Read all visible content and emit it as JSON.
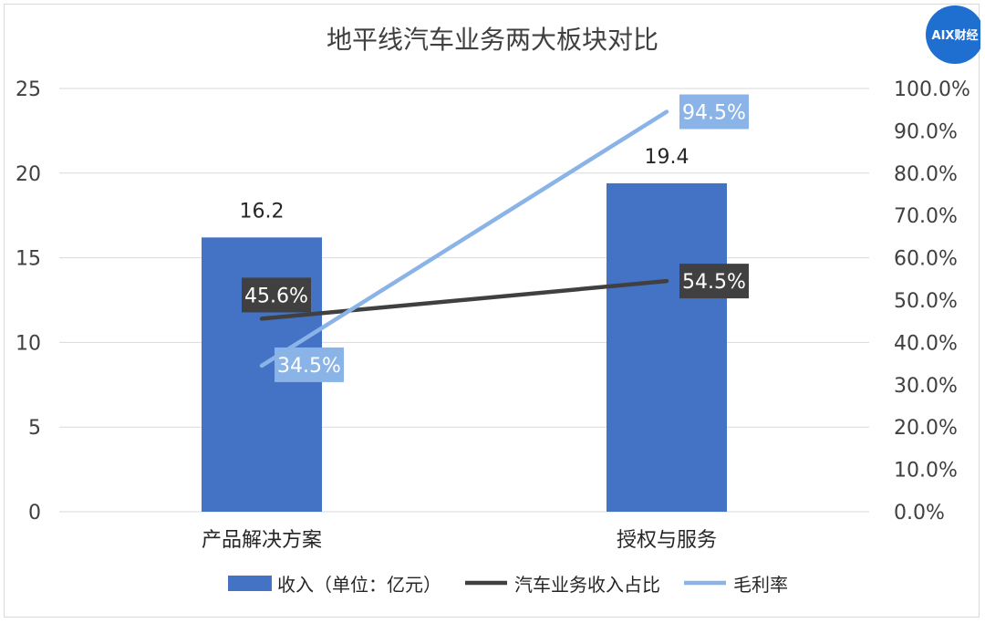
{
  "watermark": {
    "text": "AIX财经",
    "color": "#1f6fd1"
  },
  "chart_data": {
    "type": "bar",
    "title": "地平线汽车业务两大板块对比",
    "categories": [
      "产品解决方案",
      "授权与服务"
    ],
    "ylim": [
      0,
      25
    ],
    "y_ticks": [
      "0",
      "5",
      "10",
      "15",
      "20",
      "25"
    ],
    "y2lim": [
      0,
      100
    ],
    "y2_ticks": [
      "0.0%",
      "10.0%",
      "20.0%",
      "30.0%",
      "40.0%",
      "50.0%",
      "60.0%",
      "70.0%",
      "80.0%",
      "90.0%",
      "100.0%"
    ],
    "grid": true,
    "legend_position": "bottom",
    "series": [
      {
        "name": "收入（单位：亿元）",
        "type": "bar",
        "axis": "left",
        "color": "#4472c4",
        "values": [
          16.2,
          19.4
        ],
        "labels": [
          "16.2",
          "19.4"
        ]
      },
      {
        "name": "汽车业务收入占比",
        "type": "line",
        "axis": "right",
        "color": "#404040",
        "values": [
          45.6,
          54.5
        ],
        "labels": [
          "45.6%",
          "54.5%"
        ]
      },
      {
        "name": "毛利率",
        "type": "line",
        "axis": "right",
        "color": "#8ab4e8",
        "values": [
          34.5,
          94.5
        ],
        "labels": [
          "34.5%",
          "94.5%"
        ]
      }
    ]
  }
}
